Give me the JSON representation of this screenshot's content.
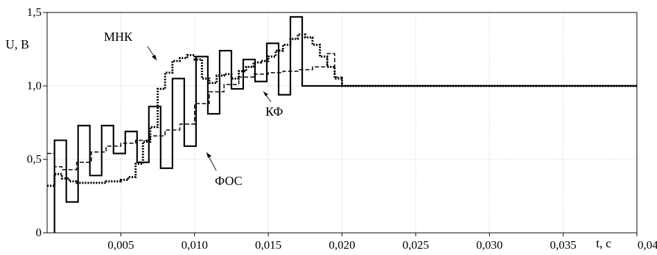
{
  "chart_data": {
    "type": "line",
    "title": "",
    "xlabel": "t, с",
    "ylabel": "U, В",
    "xlim": [
      0,
      0.04
    ],
    "ylim": [
      0,
      1.5
    ],
    "grid": true,
    "x_ticks": [
      {
        "value": 0.005,
        "label": "0,005"
      },
      {
        "value": 0.01,
        "label": "0,010"
      },
      {
        "value": 0.015,
        "label": "0,015"
      },
      {
        "value": 0.02,
        "label": "0,020"
      },
      {
        "value": 0.025,
        "label": "0,025"
      },
      {
        "value": 0.03,
        "label": "0,030"
      },
      {
        "value": 0.035,
        "label": "0,035"
      },
      {
        "value": 0.04,
        "label": "0,040"
      }
    ],
    "y_ticks": [
      {
        "value": 0,
        "label": "0"
      },
      {
        "value": 0.5,
        "label": "0,5"
      },
      {
        "value": 1.0,
        "label": "1,0"
      },
      {
        "value": 1.5,
        "label": "1,5"
      }
    ],
    "series": [
      {
        "name": "ФОС",
        "style": "solid",
        "color": "#000000",
        "step": true,
        "x": [
          0.0005,
          0.0005,
          0.0013,
          0.0021,
          0.0029,
          0.0037,
          0.0045,
          0.0053,
          0.0061,
          0.0069,
          0.0077,
          0.0085,
          0.0093,
          0.0101,
          0.0109,
          0.0117,
          0.0125,
          0.0133,
          0.0141,
          0.0149,
          0.0157,
          0.0165,
          0.0173,
          0.0181,
          0.0189,
          0.0197,
          0.02,
          0.04
        ],
        "y": [
          0,
          0.63,
          0.21,
          0.73,
          0.39,
          0.73,
          0.54,
          0.69,
          0.48,
          0.86,
          0.44,
          1.05,
          0.59,
          1.2,
          0.81,
          1.24,
          0.98,
          1.18,
          1.03,
          1.29,
          0.94,
          1.47,
          1.0,
          1.0,
          1.0,
          1.0,
          1.0,
          1.0
        ]
      },
      {
        "name": "МНК",
        "style": "dotted",
        "color": "#000000",
        "step": true,
        "x": [
          0.0,
          0.0005,
          0.001,
          0.0015,
          0.002,
          0.003,
          0.004,
          0.005,
          0.0055,
          0.006,
          0.0065,
          0.007,
          0.0075,
          0.008,
          0.0085,
          0.009,
          0.0095,
          0.01,
          0.0105,
          0.011,
          0.0115,
          0.012,
          0.0125,
          0.013,
          0.0135,
          0.014,
          0.0145,
          0.015,
          0.0155,
          0.016,
          0.0165,
          0.017,
          0.0175,
          0.018,
          0.0185,
          0.019,
          0.0195,
          0.02,
          0.04
        ],
        "y": [
          0.32,
          0.4,
          0.37,
          0.35,
          0.34,
          0.34,
          0.35,
          0.36,
          0.38,
          0.47,
          0.62,
          0.72,
          0.98,
          1.09,
          1.17,
          1.19,
          1.21,
          1.18,
          1.05,
          1.02,
          1.07,
          1.08,
          1.05,
          1.1,
          1.13,
          1.16,
          1.17,
          1.2,
          1.24,
          1.28,
          1.32,
          1.35,
          1.33,
          1.28,
          1.2,
          1.13,
          1.05,
          1.0,
          1.0
        ]
      },
      {
        "name": "КФ",
        "style": "dashed",
        "color": "#000000",
        "step": true,
        "x": [
          0.0,
          0.0005,
          0.001,
          0.002,
          0.003,
          0.004,
          0.005,
          0.006,
          0.007,
          0.008,
          0.009,
          0.01,
          0.011,
          0.012,
          0.013,
          0.014,
          0.015,
          0.016,
          0.017,
          0.018,
          0.019,
          0.0195,
          0.02,
          0.04
        ],
        "y": [
          0.54,
          0.45,
          0.43,
          0.48,
          0.55,
          0.59,
          0.61,
          0.63,
          0.66,
          0.7,
          0.74,
          0.88,
          0.96,
          1.01,
          1.06,
          1.08,
          1.09,
          1.1,
          1.11,
          1.13,
          1.22,
          1.06,
          1.0,
          1.0
        ]
      }
    ],
    "annotations": [
      {
        "text": "МНК",
        "target_series": "МНК"
      },
      {
        "text": "КФ",
        "target_series": "КФ"
      },
      {
        "text": "ФОС",
        "target_series": "ФОС"
      }
    ]
  }
}
